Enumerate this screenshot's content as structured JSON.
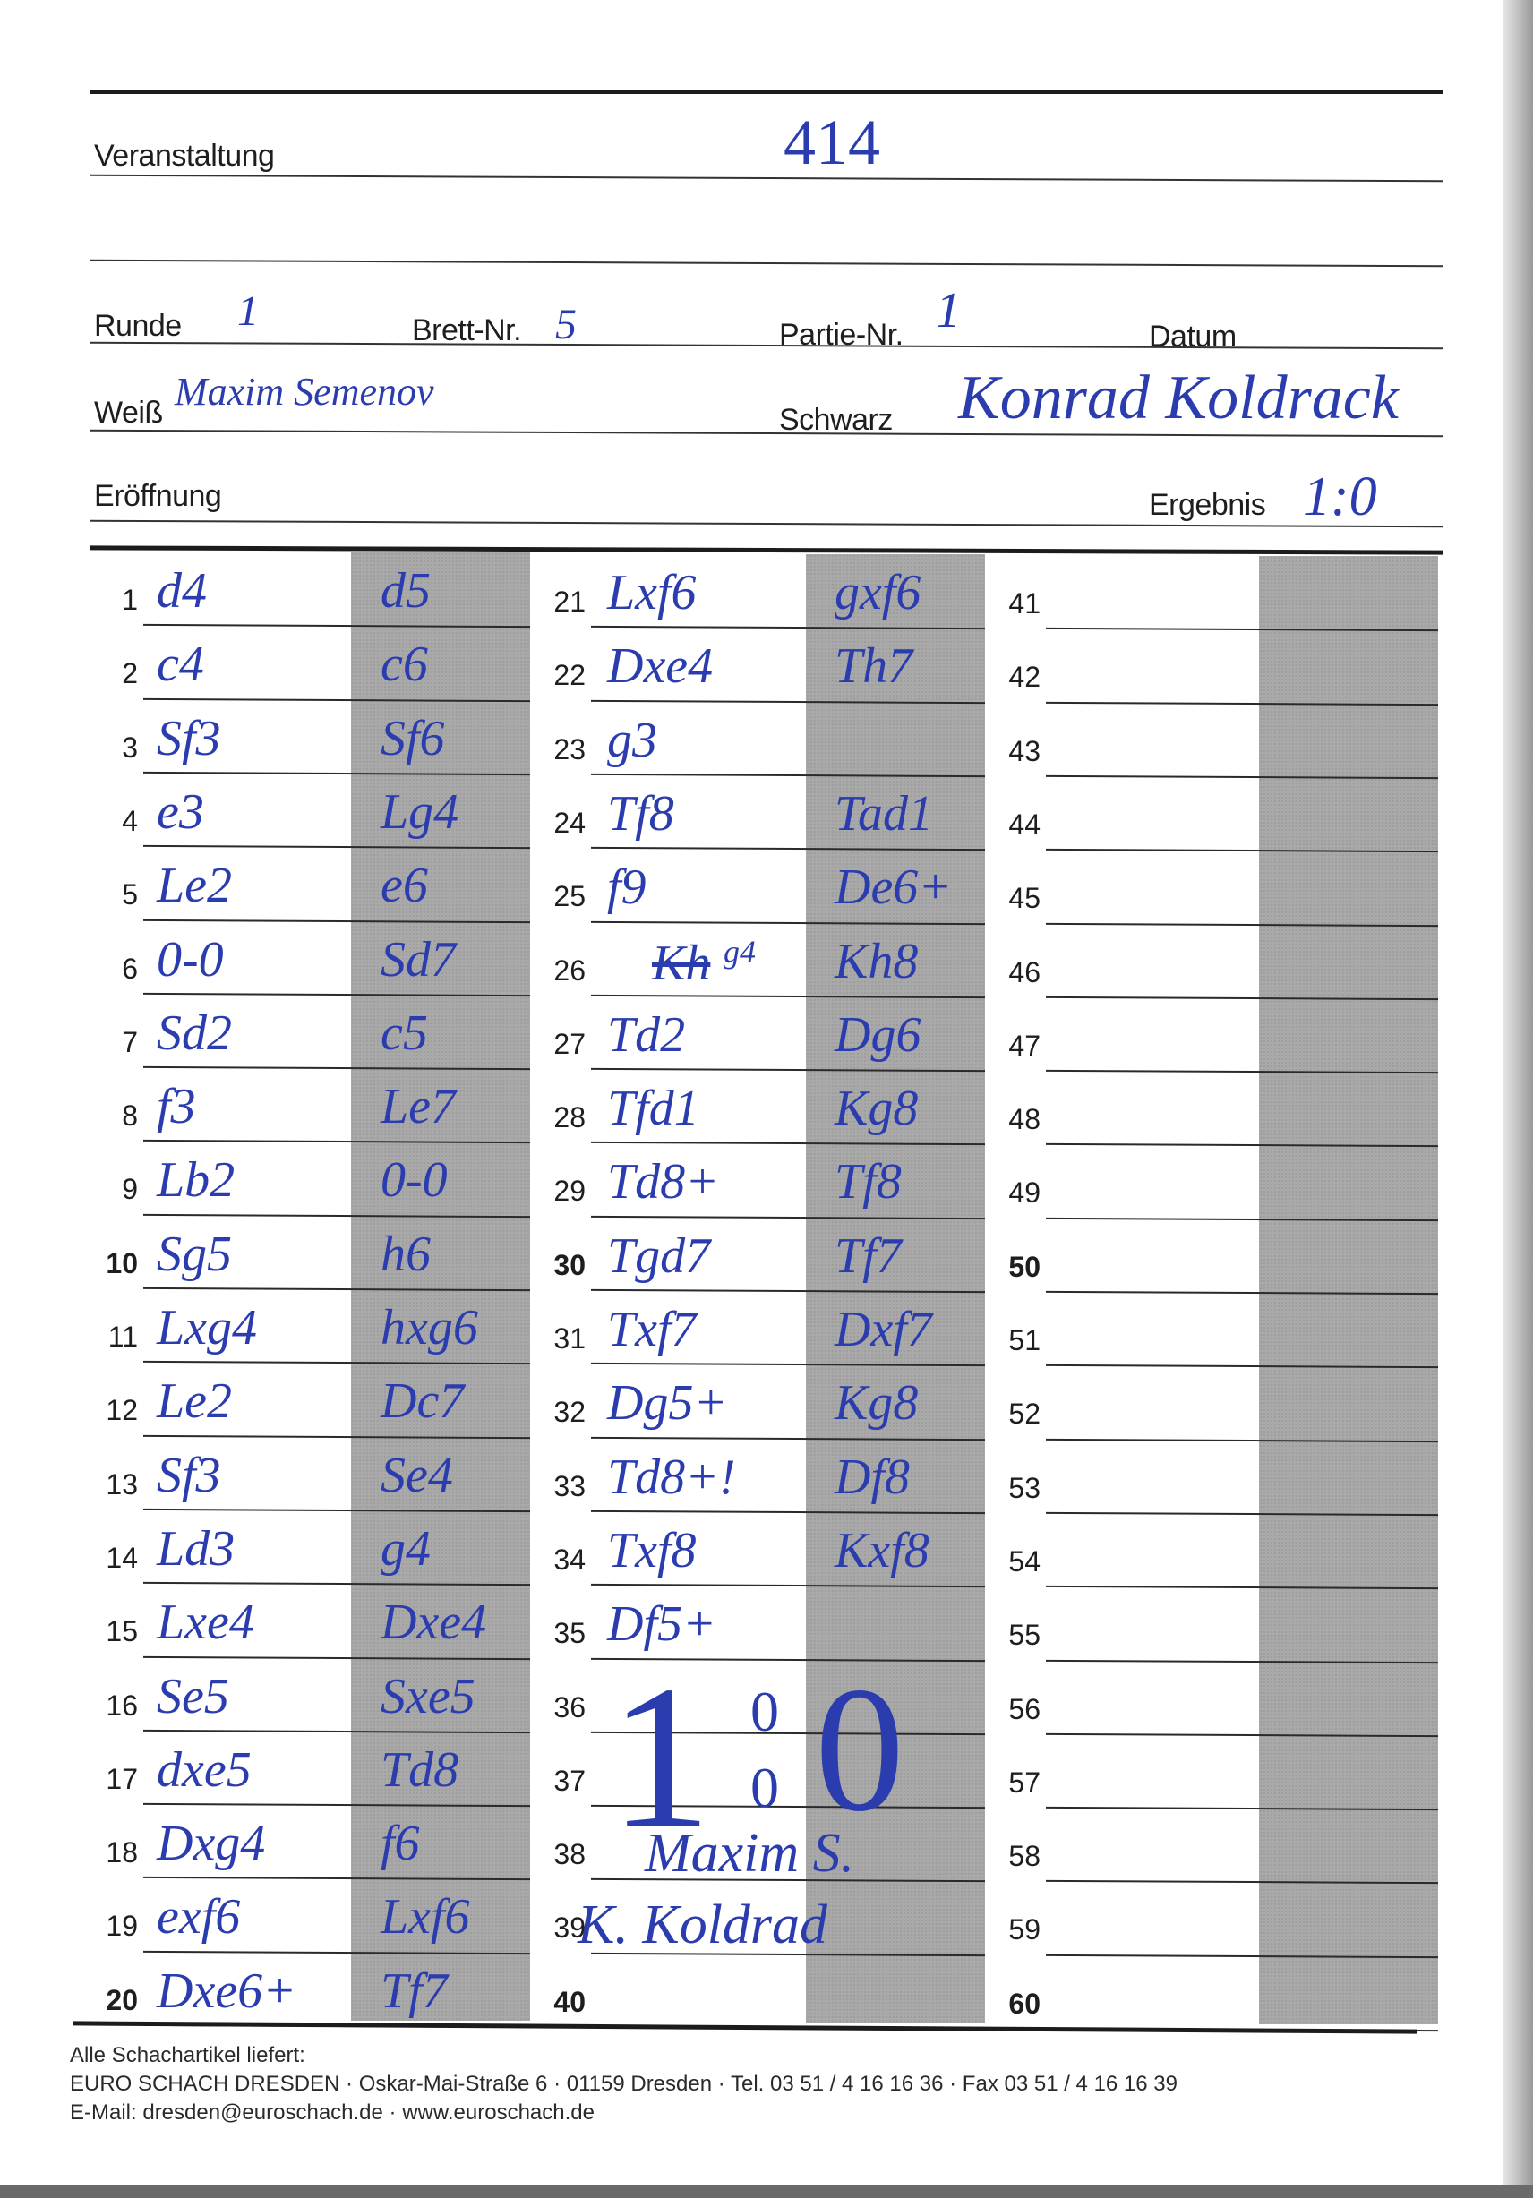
{
  "header": {
    "event_label": "Veranstaltung",
    "event_value": "414",
    "round_label": "Runde",
    "round_value": "1",
    "board_label": "Brett-Nr.",
    "board_value": "5",
    "game_label": "Partie-Nr.",
    "game_value": "1",
    "date_label": "Datum",
    "white_label": "Weiß",
    "white_value": "Maxim Semenov",
    "black_label": "Schwarz",
    "black_value": "Konrad Koldrack",
    "opening_label": "Eröffnung",
    "result_label": "Ergebnis",
    "result_value": "1:0"
  },
  "moves": [
    {
      "n": "1",
      "w": "d4",
      "b": "d5"
    },
    {
      "n": "2",
      "w": "c4",
      "b": "c6"
    },
    {
      "n": "3",
      "w": "Sf3",
      "b": "Sf6"
    },
    {
      "n": "4",
      "w": "e3",
      "b": "Lg4"
    },
    {
      "n": "5",
      "w": "Le2",
      "b": "e6"
    },
    {
      "n": "6",
      "w": "0-0",
      "b": "Sd7"
    },
    {
      "n": "7",
      "w": "Sd2",
      "b": "c5"
    },
    {
      "n": "8",
      "w": "f3",
      "b": "Le7"
    },
    {
      "n": "9",
      "w": "Lb2",
      "b": "0-0"
    },
    {
      "n": "10",
      "w": "Sg5",
      "b": "h6"
    },
    {
      "n": "11",
      "w": "Lxg4",
      "b": "hxg6"
    },
    {
      "n": "12",
      "w": "Le2",
      "b": "Dc7"
    },
    {
      "n": "13",
      "w": "Sf3",
      "b": "Se4"
    },
    {
      "n": "14",
      "w": "Ld3",
      "b": "g4"
    },
    {
      "n": "15",
      "w": "Lxe4",
      "b": "Dxe4"
    },
    {
      "n": "16",
      "w": "Se5",
      "b": "Sxe5"
    },
    {
      "n": "17",
      "w": "dxe5",
      "b": "Td8"
    },
    {
      "n": "18",
      "w": "Dxg4",
      "b": "f6"
    },
    {
      "n": "19",
      "w": "exf6",
      "b": "Lxf6"
    },
    {
      "n": "20",
      "w": "Dxe6+",
      "b": "Tf7"
    },
    {
      "n": "21",
      "w": "Lxf6",
      "b": "gxf6"
    },
    {
      "n": "22",
      "w": "Dxe4",
      "b": "Th7"
    },
    {
      "n": "23",
      "w": "g3",
      "b": ""
    },
    {
      "n": "24",
      "w": "Tf8",
      "b": "Tad1"
    },
    {
      "n": "25",
      "w": "f9",
      "b": "De6+"
    },
    {
      "n": "26",
      "w": "g4",
      "w_struck": "Kh",
      "b": "Kh8"
    },
    {
      "n": "27",
      "w": "Td2",
      "b": "Dg6"
    },
    {
      "n": "28",
      "w": "Tfd1",
      "b": "Kg8"
    },
    {
      "n": "29",
      "w": "Td8+",
      "b": "Tf8"
    },
    {
      "n": "30",
      "w": "Tgd7",
      "b": "Tf7"
    },
    {
      "n": "31",
      "w": "Txf7",
      "b": "Dxf7"
    },
    {
      "n": "32",
      "w": "Dg5+",
      "b": "Kg8"
    },
    {
      "n": "33",
      "w": "Td8+!",
      "b": "Df8"
    },
    {
      "n": "34",
      "w": "Txf8",
      "b": "Kxf8"
    },
    {
      "n": "35",
      "w": "Df5+",
      "b": ""
    },
    {
      "n": "36",
      "w": "",
      "b": ""
    },
    {
      "n": "37",
      "w": "",
      "b": ""
    },
    {
      "n": "38",
      "w": "",
      "b": ""
    },
    {
      "n": "39",
      "w": "",
      "b": ""
    },
    {
      "n": "40",
      "w": "",
      "b": ""
    },
    {
      "n": "41",
      "w": "",
      "b": ""
    },
    {
      "n": "42",
      "w": "",
      "b": ""
    },
    {
      "n": "43",
      "w": "",
      "b": ""
    },
    {
      "n": "44",
      "w": "",
      "b": ""
    },
    {
      "n": "45",
      "w": "",
      "b": ""
    },
    {
      "n": "46",
      "w": "",
      "b": ""
    },
    {
      "n": "47",
      "w": "",
      "b": ""
    },
    {
      "n": "48",
      "w": "",
      "b": ""
    },
    {
      "n": "49",
      "w": "",
      "b": ""
    },
    {
      "n": "50",
      "w": "",
      "b": ""
    },
    {
      "n": "51",
      "w": "",
      "b": ""
    },
    {
      "n": "52",
      "w": "",
      "b": ""
    },
    {
      "n": "53",
      "w": "",
      "b": ""
    },
    {
      "n": "54",
      "w": "",
      "b": ""
    },
    {
      "n": "55",
      "w": "",
      "b": ""
    },
    {
      "n": "56",
      "w": "",
      "b": ""
    },
    {
      "n": "57",
      "w": "",
      "b": ""
    },
    {
      "n": "58",
      "w": "",
      "b": ""
    },
    {
      "n": "59",
      "w": "",
      "b": ""
    },
    {
      "n": "60",
      "w": "",
      "b": ""
    }
  ],
  "annotations": {
    "result_one": "1",
    "result_zero_a": "0",
    "result_zero_b": "0",
    "result_zero_big": "0",
    "signature_white": "Maxim S.",
    "signature_black": "K. Koldrad"
  },
  "footer": {
    "line1": "Alle Schachartikel liefert:",
    "line2": "EURO SCHACH DRESDEN · Oskar-Mai-Straße 6 · 01159 Dresden · Tel. 03 51 / 4 16 16 36 · Fax 03 51 / 4 16 16 39",
    "line3": "E-Mail: dresden@euroschach.de · www.euroschach.de"
  },
  "colors": {
    "ink": "#2b3cae",
    "shade": "#a9a9a9"
  }
}
